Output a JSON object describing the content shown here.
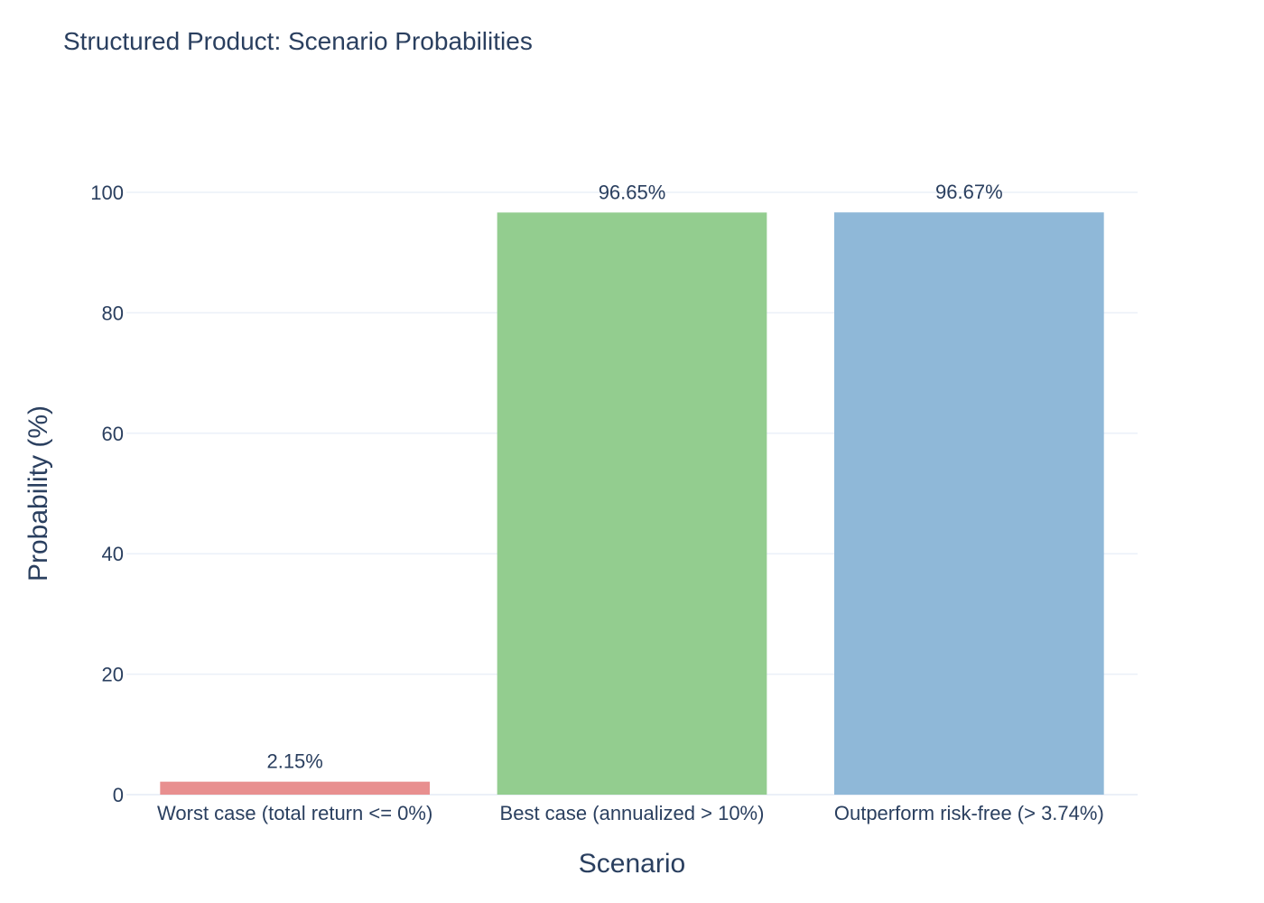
{
  "chart_data": {
    "type": "bar",
    "title": "Structured Product: Scenario Probabilities",
    "xlabel": "Scenario",
    "ylabel": "Probability (%)",
    "ylim": [
      0,
      100
    ],
    "yticks": [
      0,
      20,
      40,
      60,
      80,
      100
    ],
    "grid": true,
    "categories": [
      "Worst case (total return <= 0%)",
      "Best case (annualized > 10%)",
      "Outperform risk-free (> 3.74%)"
    ],
    "values": [
      2.15,
      96.65,
      96.67
    ],
    "data_labels": [
      "2.15%",
      "96.65%",
      "96.67%"
    ],
    "colors": [
      "#e88f8f",
      "#93cd8f",
      "#8fb8d8"
    ]
  }
}
